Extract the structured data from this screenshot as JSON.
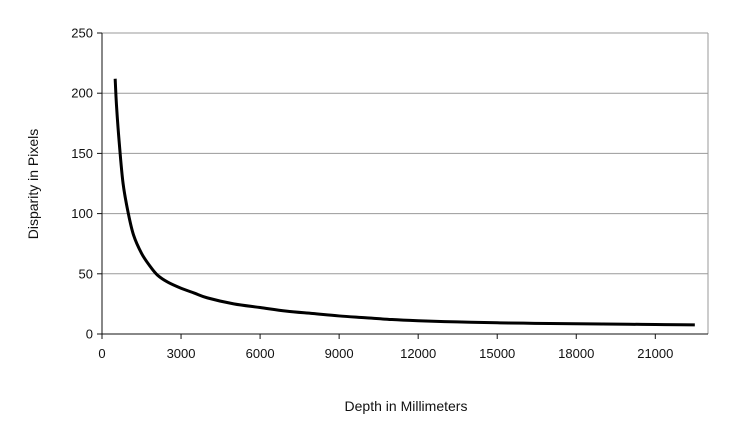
{
  "chart_data": {
    "type": "line",
    "xlabel": "Depth in Millimeters",
    "ylabel": "Disparity in Pixels",
    "xlim": [
      0,
      23000
    ],
    "ylim": [
      0,
      250
    ],
    "x_ticks": [
      0,
      3000,
      6000,
      9000,
      12000,
      15000,
      18000,
      21000
    ],
    "y_ticks": [
      0,
      50,
      100,
      150,
      200,
      250
    ],
    "grid": "horizontal",
    "series": [
      {
        "color": "#000000",
        "points": [
          [
            500,
            212
          ],
          [
            550,
            190
          ],
          [
            650,
            160
          ],
          [
            800,
            125
          ],
          [
            1000,
            100
          ],
          [
            1200,
            82
          ],
          [
            1500,
            67
          ],
          [
            1800,
            57
          ],
          [
            2100,
            49
          ],
          [
            2500,
            43
          ],
          [
            3000,
            38
          ],
          [
            3500,
            34
          ],
          [
            4000,
            30
          ],
          [
            5000,
            25
          ],
          [
            6000,
            22
          ],
          [
            7000,
            19
          ],
          [
            8000,
            17
          ],
          [
            9000,
            15
          ],
          [
            10000,
            13.5
          ],
          [
            11000,
            12
          ],
          [
            12000,
            11
          ],
          [
            13000,
            10.3
          ],
          [
            14000,
            9.8
          ],
          [
            15000,
            9.3
          ],
          [
            16000,
            9
          ],
          [
            17000,
            8.7
          ],
          [
            18000,
            8.5
          ],
          [
            19000,
            8.3
          ],
          [
            20000,
            8.1
          ],
          [
            21000,
            7.9
          ],
          [
            22000,
            7.7
          ],
          [
            22500,
            7.6
          ]
        ]
      }
    ]
  }
}
